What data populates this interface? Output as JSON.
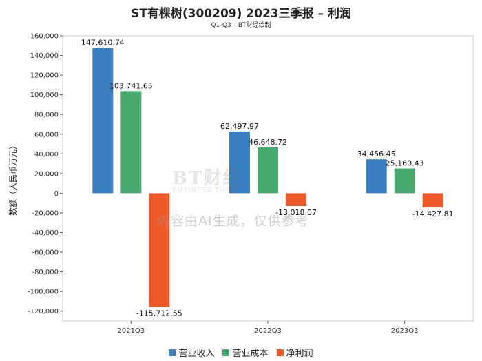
{
  "title": "ST有棵树(300209) 2023三季报 – 利润",
  "subtitle": "Q1-Q3 – BT财经绘制",
  "watermark": {
    "logo": "BT财经",
    "logo_sub": "BUSINESS TIMES",
    "text": "内容由AI生成，仅供参考"
  },
  "chart_data": {
    "type": "bar",
    "title": "ST有棵树(300209) 2023三季报 – 利润",
    "xlabel": "",
    "ylabel": "数额（人民币万元）",
    "ylim": [
      -130000,
      160000
    ],
    "yticks": [
      160000,
      140000,
      120000,
      100000,
      80000,
      60000,
      40000,
      20000,
      0,
      -20000,
      -40000,
      -60000,
      -80000,
      -100000,
      -120000
    ],
    "ytick_labels": [
      "160,000",
      "140,000",
      "120,000",
      "100,000",
      "80,000",
      "60,000",
      "40,000",
      "20,000",
      "0",
      "-20,000",
      "-40,000",
      "-60,000",
      "-80,000",
      "-100,000",
      "-120,000"
    ],
    "categories": [
      "2021Q3",
      "2022Q3",
      "2023Q3"
    ],
    "series": [
      {
        "name": "营业收入",
        "color": "#3a7fc1",
        "values": [
          147610.74,
          62497.97,
          34456.45
        ],
        "labels": [
          "147,610.74",
          "62,497.97",
          "34,456.45"
        ]
      },
      {
        "name": "营业成本",
        "color": "#47a96e",
        "values": [
          103741.65,
          46648.72,
          25160.43
        ],
        "labels": [
          "103,741.65",
          "46,648.72",
          "25,160.43"
        ]
      },
      {
        "name": "净利润",
        "color": "#ee5a2a",
        "values": [
          -115712.55,
          -13018.07,
          -14427.81
        ],
        "labels": [
          "-115,712.55",
          "-13,018.07",
          "-14,427.81"
        ]
      }
    ],
    "grid": false,
    "legend_position": "bottom"
  }
}
